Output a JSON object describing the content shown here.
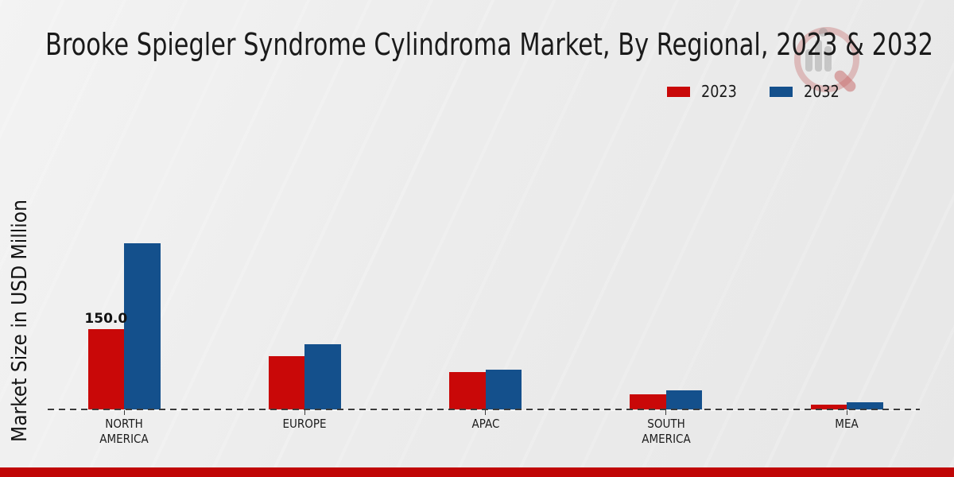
{
  "title": "Brooke Spiegler Syndrome Cylindroma Market, By Regional, 2023 & 2032",
  "ylabel": "Market Size in USD Million",
  "legend": {
    "position": "upper right"
  },
  "watermark": {
    "icon": "magnifier-bar-chart-logo"
  },
  "accent_strip_color": "#c00606",
  "chart_data": {
    "type": "bar",
    "title": "Brooke Spiegler Syndrome Cylindroma Market, By Regional, 2023 & 2032",
    "xlabel": "",
    "ylabel": "Market Size in USD Million",
    "categories": [
      "NORTH AMERICA",
      "EUROPE",
      "APAC",
      "SOUTH AMERICA",
      "MEA"
    ],
    "series": [
      {
        "name": "2023",
        "color": "#c90808",
        "values": [
          150.0,
          100.0,
          70.0,
          28.0,
          9.0
        ],
        "data_labels": [
          "150.0",
          null,
          null,
          null,
          null
        ]
      },
      {
        "name": "2032",
        "color": "#14508c",
        "values": [
          310.0,
          122.0,
          75.0,
          36.0,
          13.0
        ]
      }
    ],
    "ylim": [
      0,
      330
    ],
    "grid": false,
    "baseline_style": "dashed",
    "legend_position": "upper right"
  }
}
